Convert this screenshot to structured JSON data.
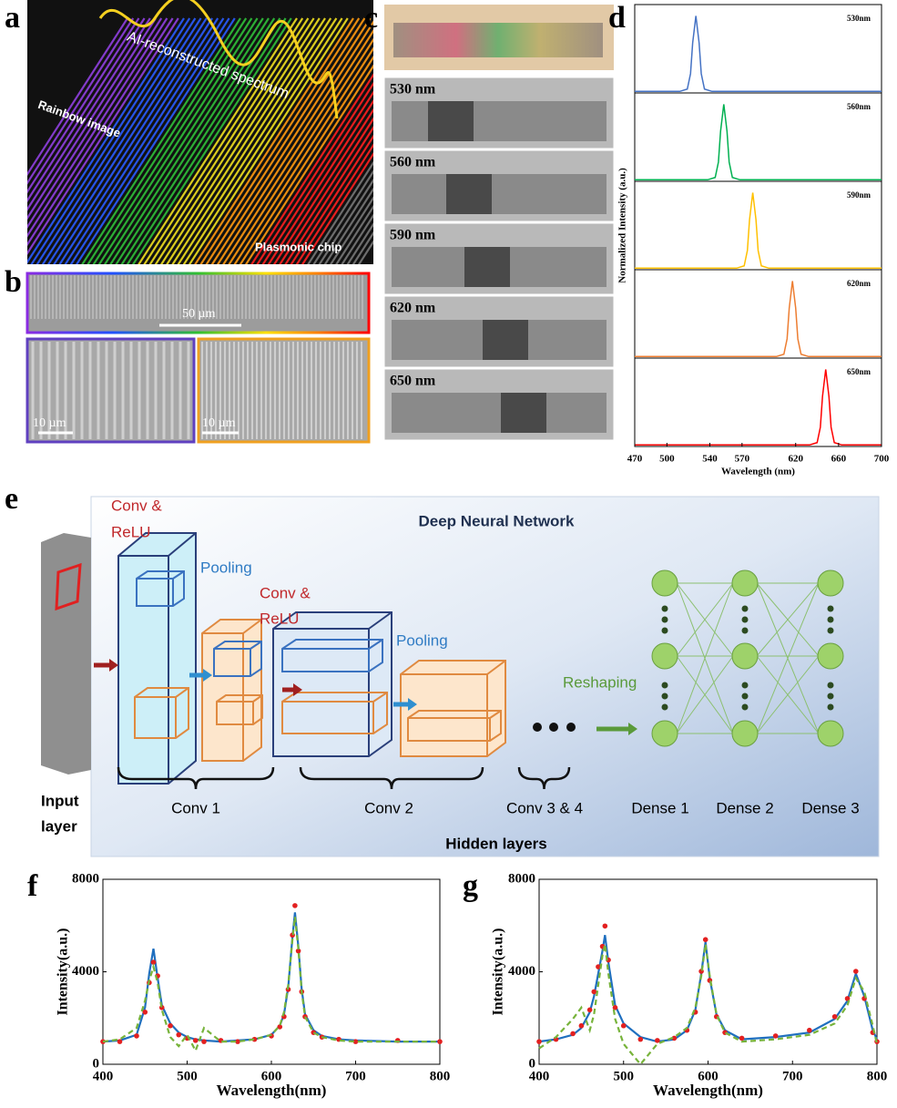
{
  "panel_labels": [
    "a",
    "b",
    "c",
    "d",
    "e",
    "f",
    "g"
  ],
  "panel_a": {
    "spectrum_label": "AI-reconstructed spectrum",
    "image_label": "Rainbow image",
    "chip_label": "Plasmonic chip"
  },
  "panel_b": {
    "scale_bars": [
      "50 µm",
      "10 µm",
      "10 µm"
    ]
  },
  "panel_c": {
    "image_labels": [
      "530 nm",
      "560 nm",
      "590 nm",
      "620 nm",
      "650 nm"
    ]
  },
  "panel_e": {
    "title": "Deep Neural Network",
    "conv_relu_1": [
      "Conv &",
      "ReLU"
    ],
    "pooling_1": "Pooling",
    "conv_relu_2": [
      "Conv &",
      "ReLU"
    ],
    "pooling_2": "Pooling",
    "reshaping": "Reshaping",
    "input_layer": [
      "Input",
      "layer"
    ],
    "layers": [
      "Conv 1",
      "Conv 2",
      "Conv 3 & 4",
      "Dense 1",
      "Dense 2",
      "Dense 3"
    ],
    "hidden_layers": "Hidden layers"
  },
  "chart_data": [
    {
      "type": "line",
      "stacked": true,
      "xlabel": "Wavelength (nm)",
      "ylabel": "Normalized Intensity (a.u.)",
      "xlim": [
        470,
        700
      ],
      "xticks": [
        470,
        500,
        540,
        570,
        620,
        660,
        700
      ],
      "ylim": [
        0,
        1.1
      ],
      "series": [
        {
          "name": "530nm",
          "color": "#4472c4",
          "x": [
            470,
            512,
            519,
            522,
            524,
            527,
            530,
            532,
            535,
            542,
            700
          ],
          "values": [
            0.02,
            0.02,
            0.05,
            0.25,
            0.65,
            1,
            0.65,
            0.25,
            0.05,
            0.02,
            0.02
          ]
        },
        {
          "name": "560nm",
          "color": "#00b050",
          "x": [
            470,
            538,
            545,
            548,
            550,
            553,
            556,
            558,
            561,
            568,
            700
          ],
          "values": [
            0.02,
            0.02,
            0.05,
            0.25,
            0.65,
            1,
            0.65,
            0.25,
            0.05,
            0.02,
            0.02
          ]
        },
        {
          "name": "590nm",
          "color": "#ffc000",
          "x": [
            470,
            565,
            572,
            575,
            577,
            580,
            583,
            585,
            588,
            595,
            700
          ],
          "values": [
            0.02,
            0.02,
            0.05,
            0.25,
            0.65,
            1,
            0.65,
            0.25,
            0.05,
            0.02,
            0.02
          ]
        },
        {
          "name": "620nm",
          "color": "#ed7d31",
          "x": [
            470,
            602,
            609,
            612,
            614,
            617,
            620,
            622,
            625,
            632,
            700
          ],
          "values": [
            0.02,
            0.02,
            0.05,
            0.25,
            0.65,
            1,
            0.65,
            0.25,
            0.05,
            0.02,
            0.02
          ]
        },
        {
          "name": "650nm",
          "color": "#ff0000",
          "x": [
            470,
            633,
            640,
            643,
            645,
            648,
            651,
            653,
            656,
            663,
            700
          ],
          "values": [
            0.02,
            0.02,
            0.05,
            0.25,
            0.65,
            1,
            0.65,
            0.25,
            0.05,
            0.02,
            0.02
          ]
        }
      ]
    },
    {
      "type": "line",
      "xlabel": "Wavelength(nm)",
      "ylabel": "Intensity(a.u.)",
      "xlim": [
        400,
        800
      ],
      "xticks": [
        400,
        500,
        600,
        700,
        800
      ],
      "ylim": [
        0,
        8000
      ],
      "yticks": [
        0,
        4000,
        8000
      ],
      "x": [
        400,
        420,
        440,
        450,
        455,
        460,
        465,
        470,
        480,
        490,
        500,
        510,
        520,
        540,
        560,
        580,
        600,
        610,
        615,
        620,
        625,
        628,
        632,
        636,
        640,
        650,
        660,
        680,
        700,
        750,
        800
      ],
      "series": [
        {
          "color": "#1f6fbf",
          "style": "solid",
          "values": [
            1000,
            1050,
            1300,
            2500,
            4000,
            5100,
            3800,
            2600,
            1800,
            1400,
            1200,
            1100,
            1050,
            1000,
            1050,
            1100,
            1300,
            1700,
            2200,
            3400,
            5600,
            6700,
            5200,
            3300,
            2200,
            1500,
            1250,
            1100,
            1050,
            1000,
            1000
          ]
        },
        {
          "color": "#e32020",
          "style": "markers",
          "values": [
            1000,
            1000,
            1250,
            2300,
            3600,
            4500,
            3900,
            2500,
            1700,
            1300,
            1150,
            1050,
            1000,
            1050,
            1000,
            1100,
            1250,
            1650,
            2100,
            3300,
            5700,
            7000,
            5000,
            3200,
            2100,
            1400,
            1200,
            1100,
            1000,
            1050,
            1000
          ]
        },
        {
          "color": "#77b33a",
          "style": "dashed",
          "values": [
            1000,
            1100,
            1600,
            2800,
            3700,
            4300,
            3600,
            2400,
            1200,
            800,
            1300,
            600,
            1600,
            1000,
            1000,
            1100,
            1300,
            1700,
            2300,
            3500,
            5500,
            6500,
            5100,
            3200,
            2100,
            1400,
            1200,
            1050,
            1000,
            1000,
            1000
          ]
        }
      ]
    },
    {
      "type": "line",
      "xlabel": "Wavelength(nm)",
      "ylabel": "Intensity(a.u.)",
      "xlim": [
        400,
        800
      ],
      "xticks": [
        400,
        500,
        600,
        700,
        800
      ],
      "ylim": [
        0,
        8000
      ],
      "yticks": [
        0,
        4000,
        8000
      ],
      "x": [
        400,
        420,
        440,
        450,
        460,
        465,
        470,
        475,
        478,
        482,
        490,
        500,
        520,
        540,
        560,
        575,
        585,
        592,
        597,
        602,
        610,
        620,
        640,
        680,
        720,
        750,
        765,
        775,
        785,
        795,
        800
      ],
      "series": [
        {
          "color": "#1f6fbf",
          "style": "solid",
          "values": [
            1000,
            1100,
            1300,
            1600,
            2300,
            3000,
            4000,
            5000,
            5700,
            4500,
            2600,
            1800,
            1200,
            1000,
            1100,
            1500,
            2400,
            4000,
            5400,
            3800,
            2200,
            1500,
            1100,
            1200,
            1400,
            2000,
            2800,
            4000,
            3000,
            1500,
            1100
          ]
        },
        {
          "color": "#e32020",
          "style": "markers",
          "values": [
            1000,
            1100,
            1350,
            1700,
            2400,
            3200,
            4300,
            5200,
            6100,
            4600,
            2500,
            1700,
            1100,
            1050,
            1150,
            1500,
            2300,
            4100,
            5500,
            3700,
            2100,
            1400,
            1150,
            1250,
            1500,
            2100,
            2900,
            4100,
            2900,
            1400,
            1000
          ]
        },
        {
          "color": "#77b33a",
          "style": "dashed",
          "values": [
            700,
            1200,
            2000,
            2500,
            1500,
            2200,
            3500,
            4800,
            5300,
            4000,
            2000,
            900,
            0,
            900,
            1200,
            1600,
            2500,
            3900,
            5300,
            3900,
            2200,
            1400,
            1000,
            1100,
            1300,
            1800,
            2600,
            3800,
            3200,
            1700,
            900
          ]
        }
      ]
    }
  ]
}
